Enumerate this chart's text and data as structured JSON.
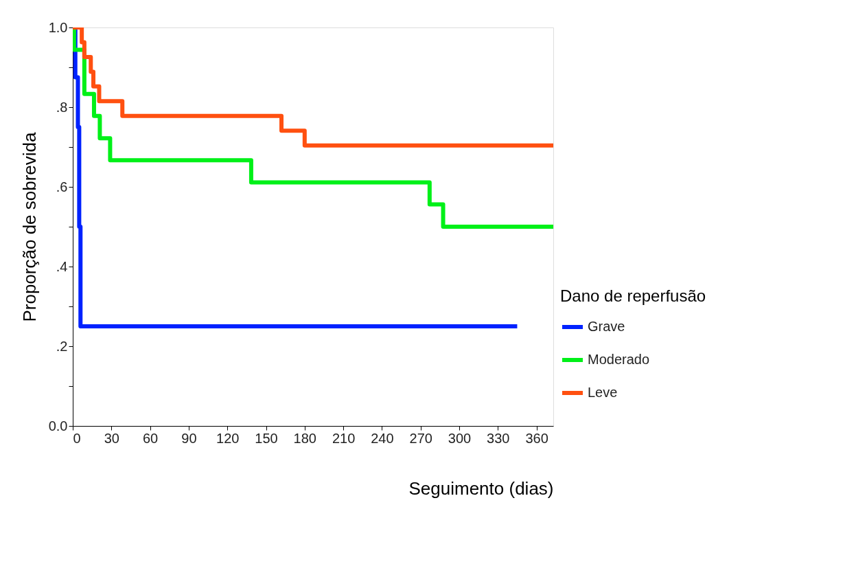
{
  "chart_data": {
    "type": "step",
    "xlabel": "Seguimento (dias)",
    "ylabel": "Proporção de sobrevida",
    "legend_title": "Dano de reperfusão",
    "xlim": [
      0,
      373
    ],
    "xticks": [
      0,
      30,
      60,
      90,
      120,
      150,
      180,
      210,
      240,
      270,
      300,
      330,
      360
    ],
    "ylim": [
      0,
      1
    ],
    "yticks": [
      {
        "value": 0,
        "label": "0.0"
      },
      {
        "value": 0.1,
        "label": null
      },
      {
        "value": 0.2,
        "label": ".2"
      },
      {
        "value": 0.3,
        "label": null
      },
      {
        "value": 0.4,
        "label": ".4"
      },
      {
        "value": 0.5,
        "label": null
      },
      {
        "value": 0.6,
        "label": ".6"
      },
      {
        "value": 0.7,
        "label": null
      },
      {
        "value": 0.8,
        "label": ".8"
      },
      {
        "value": 0.9,
        "label": null
      },
      {
        "value": 1.0,
        "label": "1.0"
      }
    ],
    "grid": false,
    "legend": "bottom right",
    "series": [
      {
        "name": "Grave",
        "color": "#0022ff",
        "x": [
          0,
          2,
          4,
          5,
          6,
          345
        ],
        "values": [
          1.0,
          0.875,
          0.75,
          0.5,
          0.25,
          0.25
        ]
      },
      {
        "name": "Moderado",
        "color": "#00f018",
        "x": [
          0,
          1,
          9,
          16.5,
          21,
          29,
          138.5,
          277,
          287.5,
          373
        ],
        "values": [
          1.0,
          0.944,
          0.833,
          0.778,
          0.722,
          0.667,
          0.611,
          0.556,
          0.5,
          0.5
        ]
      },
      {
        "name": "Leve",
        "color": "#ff5010",
        "x": [
          0,
          7,
          9,
          14,
          16,
          20.5,
          38.5,
          162,
          180,
          373
        ],
        "values": [
          1.0,
          0.963,
          0.926,
          0.889,
          0.852,
          0.815,
          0.778,
          0.741,
          0.704,
          0.704
        ]
      }
    ]
  }
}
